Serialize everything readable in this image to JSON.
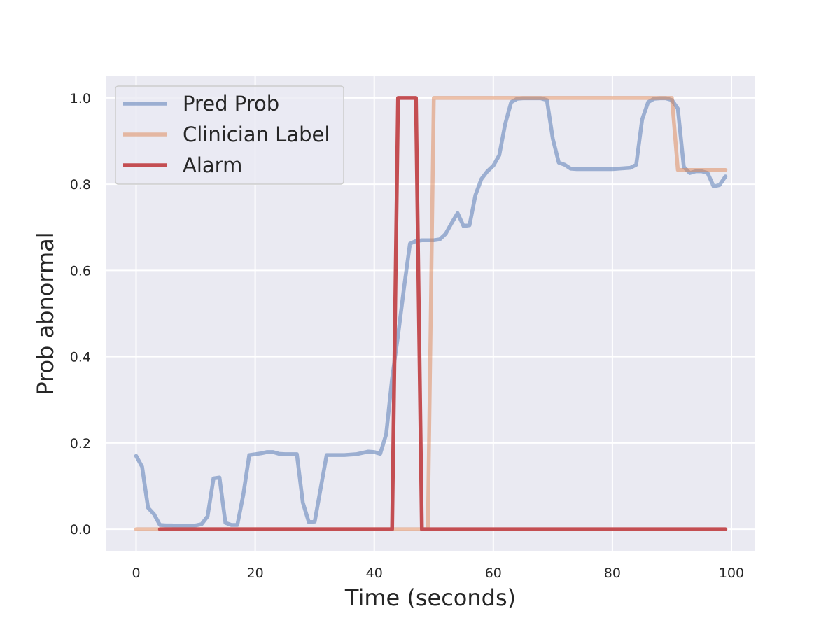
{
  "chart_data": {
    "type": "line",
    "title": "",
    "xlabel": "Time (seconds)",
    "ylabel": "Prob abnormal",
    "xlim": [
      -5,
      104
    ],
    "ylim": [
      -0.05,
      1.05
    ],
    "xticks": [
      0,
      20,
      40,
      60,
      80,
      100
    ],
    "yticks": [
      0.0,
      0.2,
      0.4,
      0.6,
      0.8,
      1.0
    ],
    "xtick_labels": [
      "0",
      "20",
      "40",
      "60",
      "80",
      "100"
    ],
    "ytick_labels": [
      "0.0",
      "0.2",
      "0.4",
      "0.6",
      "0.8",
      "1.0"
    ],
    "grid": true,
    "legend_position": "top-left",
    "background": "#eaeaf2",
    "series": [
      {
        "name": "Pred Prob",
        "color": "#4c72b0",
        "opacity": 0.5,
        "x": [
          0,
          1,
          2,
          3,
          4,
          5,
          6,
          7,
          8,
          9,
          10,
          11,
          12,
          13,
          14,
          15,
          16,
          17,
          18,
          19,
          20,
          21,
          22,
          23,
          24,
          25,
          26,
          27,
          28,
          29,
          30,
          31,
          32,
          33,
          34,
          35,
          36,
          37,
          38,
          39,
          40,
          41,
          42,
          43,
          44,
          45,
          46,
          47,
          48,
          49,
          50,
          51,
          52,
          53,
          54,
          55,
          56,
          57,
          58,
          59,
          60,
          61,
          62,
          63,
          64,
          65,
          66,
          67,
          68,
          69,
          70,
          71,
          72,
          73,
          74,
          75,
          76,
          77,
          78,
          79,
          80,
          81,
          82,
          83,
          84,
          85,
          86,
          87,
          88,
          89,
          90,
          91,
          92,
          93,
          94,
          95,
          96,
          97,
          98,
          99
        ],
        "y": [
          0.17,
          0.145,
          0.05,
          0.035,
          0.01,
          0.009,
          0.009,
          0.008,
          0.008,
          0.008,
          0.009,
          0.012,
          0.03,
          0.118,
          0.12,
          0.015,
          0.01,
          0.01,
          0.08,
          0.172,
          0.174,
          0.176,
          0.179,
          0.179,
          0.175,
          0.174,
          0.174,
          0.174,
          0.062,
          0.017,
          0.018,
          0.095,
          0.172,
          0.172,
          0.172,
          0.172,
          0.173,
          0.174,
          0.177,
          0.18,
          0.179,
          0.175,
          0.22,
          0.35,
          0.45,
          0.56,
          0.662,
          0.668,
          0.67,
          0.67,
          0.67,
          0.672,
          0.685,
          0.71,
          0.733,
          0.703,
          0.705,
          0.775,
          0.812,
          0.83,
          0.843,
          0.867,
          0.94,
          0.99,
          0.998,
          0.999,
          0.999,
          0.999,
          0.999,
          0.995,
          0.905,
          0.85,
          0.845,
          0.836,
          0.835,
          0.835,
          0.835,
          0.835,
          0.835,
          0.835,
          0.835,
          0.836,
          0.837,
          0.838,
          0.845,
          0.95,
          0.99,
          0.998,
          0.999,
          0.999,
          0.995,
          0.975,
          0.84,
          0.826,
          0.83,
          0.83,
          0.826,
          0.795,
          0.798,
          0.818
        ]
      },
      {
        "name": "Clinician Label",
        "color": "#dd8452",
        "opacity": 0.5,
        "x": [
          0,
          49,
          50,
          90,
          91,
          99
        ],
        "y": [
          0,
          0,
          1,
          1,
          0.833,
          0.833
        ]
      },
      {
        "name": "Alarm",
        "color": "#c44e52",
        "opacity": 1.0,
        "x": [
          4,
          43,
          44,
          47,
          48,
          99
        ],
        "y": [
          0,
          0,
          1,
          1,
          0,
          0
        ]
      }
    ]
  }
}
